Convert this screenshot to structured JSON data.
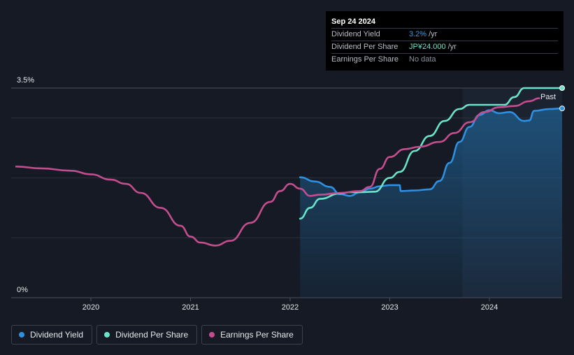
{
  "tooltip": {
    "date": "Sep 24 2024",
    "rows": [
      {
        "label": "Dividend Yield",
        "value": "3.2%",
        "unit": "/yr",
        "color": "#3b9ae1"
      },
      {
        "label": "Dividend Per Share",
        "value": "JP¥24.000",
        "unit": "/yr",
        "color": "#6be3c9"
      },
      {
        "label": "Earnings Per Share",
        "value": "No data",
        "unit": "",
        "color": "#8a909a"
      }
    ]
  },
  "legend": [
    {
      "label": "Dividend Yield",
      "color": "#2f8fe0"
    },
    {
      "label": "Dividend Per Share",
      "color": "#6be3c9"
    },
    {
      "label": "Earnings Per Share",
      "color": "#c44d8e"
    }
  ],
  "chart_data": {
    "type": "line",
    "title": "",
    "xlabel": "",
    "ylabel": "",
    "x_ticks": [
      "2020",
      "2021",
      "2022",
      "2023",
      "2024"
    ],
    "x_tick_values": [
      2020.0,
      2021.0,
      2022.0,
      2023.0,
      2024.0
    ],
    "xlim": [
      2019.2,
      2024.73
    ],
    "ylim": [
      0,
      3.5
    ],
    "y_tick_labels": [
      "3.5%",
      "0%"
    ],
    "y_tick_values": [
      3.5,
      0
    ],
    "gridlines": [
      1.0,
      2.0,
      3.0,
      3.5
    ],
    "past_label": "Past",
    "past_region_start": 2023.73,
    "series": [
      {
        "name": "Dividend Yield",
        "color": "#2f8fe0",
        "fill": true,
        "points": [
          [
            2022.1,
            2.01
          ],
          [
            2022.25,
            1.94
          ],
          [
            2022.4,
            1.85
          ],
          [
            2022.5,
            1.73
          ],
          [
            2022.6,
            1.7
          ],
          [
            2022.7,
            1.76
          ],
          [
            2022.8,
            1.82
          ],
          [
            2022.9,
            1.86
          ],
          [
            2023.0,
            1.88
          ],
          [
            2023.1,
            1.88
          ],
          [
            2023.11,
            1.78
          ],
          [
            2023.25,
            1.79
          ],
          [
            2023.4,
            1.81
          ],
          [
            2023.5,
            1.95
          ],
          [
            2023.6,
            2.25
          ],
          [
            2023.7,
            2.6
          ],
          [
            2023.8,
            2.85
          ],
          [
            2023.9,
            3.05
          ],
          [
            2024.0,
            3.13
          ],
          [
            2024.1,
            3.08
          ],
          [
            2024.2,
            3.1
          ],
          [
            2024.35,
            2.95
          ],
          [
            2024.4,
            2.96
          ],
          [
            2024.45,
            3.12
          ],
          [
            2024.6,
            3.15
          ],
          [
            2024.73,
            3.16
          ]
        ]
      },
      {
        "name": "Dividend Per Share",
        "color": "#6be3c9",
        "fill": false,
        "points": [
          [
            2022.1,
            1.32
          ],
          [
            2022.2,
            1.5
          ],
          [
            2022.3,
            1.65
          ],
          [
            2022.5,
            1.74
          ],
          [
            2022.6,
            1.76
          ],
          [
            2022.7,
            1.76
          ],
          [
            2022.85,
            1.77
          ],
          [
            2023.0,
            2.0
          ],
          [
            2023.1,
            2.1
          ],
          [
            2023.25,
            2.45
          ],
          [
            2023.4,
            2.7
          ],
          [
            2023.55,
            2.95
          ],
          [
            2023.7,
            3.15
          ],
          [
            2023.8,
            3.22
          ],
          [
            2024.0,
            3.22
          ],
          [
            2024.15,
            3.22
          ],
          [
            2024.25,
            3.35
          ],
          [
            2024.35,
            3.5
          ],
          [
            2024.73,
            3.5
          ]
        ]
      },
      {
        "name": "Earnings Per Share",
        "color": "#c44d8e",
        "fill": false,
        "points": [
          [
            2019.25,
            2.19
          ],
          [
            2019.5,
            2.16
          ],
          [
            2019.8,
            2.12
          ],
          [
            2020.0,
            2.06
          ],
          [
            2020.2,
            1.97
          ],
          [
            2020.35,
            1.9
          ],
          [
            2020.5,
            1.75
          ],
          [
            2020.7,
            1.5
          ],
          [
            2020.9,
            1.2
          ],
          [
            2021.0,
            1.02
          ],
          [
            2021.1,
            0.92
          ],
          [
            2021.25,
            0.87
          ],
          [
            2021.4,
            0.95
          ],
          [
            2021.6,
            1.25
          ],
          [
            2021.8,
            1.6
          ],
          [
            2021.9,
            1.78
          ],
          [
            2022.0,
            1.9
          ],
          [
            2022.1,
            1.82
          ],
          [
            2022.2,
            1.7
          ],
          [
            2022.3,
            1.72
          ],
          [
            2022.5,
            1.75
          ],
          [
            2022.7,
            1.78
          ],
          [
            2022.8,
            1.85
          ],
          [
            2022.9,
            2.15
          ],
          [
            2023.0,
            2.35
          ],
          [
            2023.15,
            2.48
          ],
          [
            2023.3,
            2.52
          ],
          [
            2023.5,
            2.6
          ],
          [
            2023.65,
            2.75
          ],
          [
            2023.8,
            2.93
          ],
          [
            2023.95,
            3.1
          ],
          [
            2024.1,
            3.18
          ],
          [
            2024.25,
            3.2
          ],
          [
            2024.4,
            3.28
          ],
          [
            2024.5,
            3.33
          ]
        ]
      }
    ]
  }
}
